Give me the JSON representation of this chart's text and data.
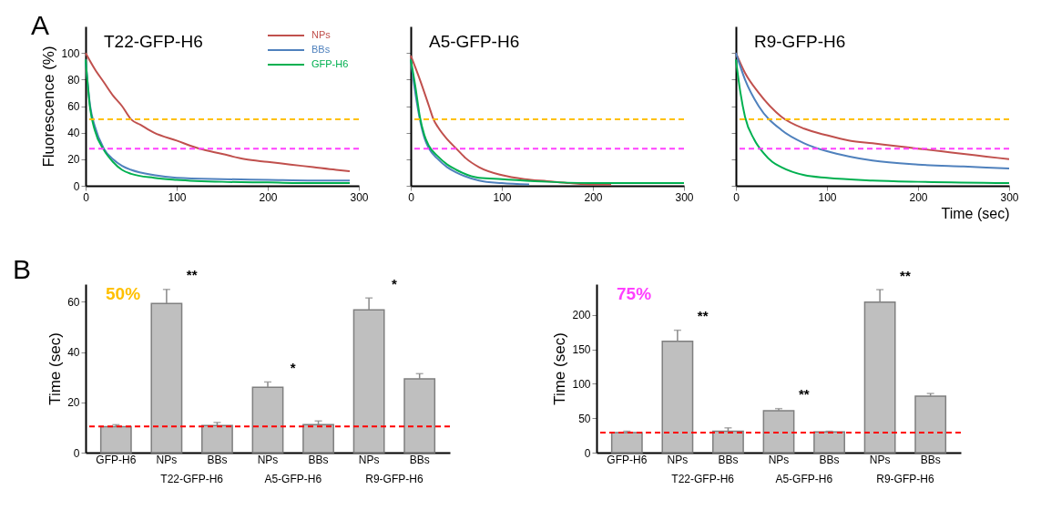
{
  "chart_data": [
    {
      "type": "line",
      "title": "T22-GFP-H6",
      "ylabel": "Fluorescence (%)",
      "annotations": [
        "A"
      ],
      "xlim": [
        0,
        300
      ],
      "xticks": [
        0,
        100,
        200,
        300
      ],
      "ylim": [
        0,
        120
      ],
      "yticks": [
        0,
        20,
        40,
        60,
        80,
        100
      ],
      "legend": "top right",
      "grid": false,
      "series": [
        {
          "name": "NPs",
          "color": "#c0504d",
          "x": [
            0,
            10,
            20,
            30,
            40,
            50,
            60,
            75,
            100,
            125,
            150,
            175,
            200,
            225,
            250,
            275,
            290
          ],
          "values": [
            100,
            88,
            78,
            68,
            60,
            50,
            46,
            40,
            34,
            28,
            24,
            20,
            18,
            16,
            14,
            12,
            11
          ]
        },
        {
          "name": "BBs",
          "color": "#4f81bd",
          "x": [
            0,
            5,
            10,
            20,
            30,
            40,
            50,
            75,
            100,
            150,
            200,
            250,
            290
          ],
          "values": [
            95,
            60,
            45,
            28,
            20,
            15,
            12,
            8,
            6,
            5,
            4.5,
            4,
            4
          ]
        },
        {
          "name": "GFP-H6",
          "color": "#00b050",
          "x": [
            0,
            5,
            10,
            20,
            30,
            40,
            50,
            75,
            100,
            150,
            200,
            250,
            290
          ],
          "values": [
            95,
            58,
            42,
            27,
            18,
            12,
            9,
            6,
            4.5,
            3,
            2.5,
            2,
            2
          ]
        }
      ],
      "ref_lines": [
        {
          "axis": "y",
          "value": 50,
          "color": "#ffc000",
          "line_style": "dashed"
        },
        {
          "axis": "y",
          "value": 28,
          "color": "#ff40ff",
          "line_style": "dashed"
        }
      ]
    },
    {
      "type": "line",
      "title": "A5-GFP-H6",
      "xlim": [
        0,
        300
      ],
      "xticks": [
        0,
        100,
        200,
        300
      ],
      "ylim": [
        0,
        120
      ],
      "yticks": [
        0,
        20,
        40,
        60,
        80,
        100
      ],
      "tick_labels": "x",
      "grid": false,
      "series": [
        {
          "color": "#c0504d",
          "x": [
            0,
            10,
            20,
            25,
            30,
            40,
            50,
            60,
            75,
            100,
            125,
            150,
            175,
            200,
            220
          ],
          "values": [
            98,
            80,
            60,
            50,
            44,
            35,
            28,
            21,
            14,
            8,
            5,
            3.5,
            2,
            1,
            1
          ]
        },
        {
          "color": "#4f81bd",
          "x": [
            0,
            5,
            10,
            15,
            20,
            30,
            40,
            50,
            75,
            100,
            130
          ],
          "values": [
            95,
            70,
            50,
            36,
            28,
            20,
            14,
            10,
            4,
            2,
            1
          ]
        },
        {
          "color": "#00b050",
          "x": [
            0,
            5,
            10,
            15,
            20,
            30,
            40,
            50,
            75,
            100,
            150,
            200,
            300
          ],
          "values": [
            95,
            75,
            52,
            38,
            30,
            22,
            16,
            12,
            6,
            5,
            3,
            2,
            2
          ]
        }
      ],
      "ref_lines": [
        {
          "axis": "y",
          "value": 50,
          "color": "#ffc000",
          "line_style": "dashed"
        },
        {
          "axis": "y",
          "value": 28,
          "color": "#ff40ff",
          "line_style": "dashed"
        }
      ]
    },
    {
      "type": "line",
      "title": "R9-GFP-H6",
      "xlabel": "Time (sec)",
      "xlim": [
        0,
        300
      ],
      "xticks": [
        0,
        100,
        200,
        300
      ],
      "ylim": [
        0,
        120
      ],
      "yticks": [
        0,
        20,
        40,
        60,
        80,
        100
      ],
      "tick_labels": "x",
      "grid": false,
      "series": [
        {
          "color": "#c0504d",
          "x": [
            0,
            10,
            25,
            50,
            75,
            100,
            125,
            150,
            175,
            200,
            225,
            250,
            275,
            300
          ],
          "values": [
            100,
            85,
            70,
            52,
            43,
            38,
            34,
            32,
            30,
            28,
            26,
            24,
            22,
            20
          ]
        },
        {
          "color": "#4f81bd",
          "x": [
            0,
            10,
            25,
            50,
            75,
            100,
            125,
            150,
            200,
            250,
            300
          ],
          "values": [
            100,
            80,
            60,
            42,
            32,
            26,
            22,
            19,
            16,
            14.5,
            13
          ]
        },
        {
          "color": "#00b050",
          "x": [
            0,
            5,
            10,
            20,
            30,
            40,
            50,
            75,
            100,
            150,
            200,
            300
          ],
          "values": [
            95,
            70,
            52,
            35,
            25,
            18,
            14,
            8,
            6,
            4,
            3,
            2
          ]
        }
      ],
      "ref_lines": [
        {
          "axis": "y",
          "value": 50,
          "color": "#ffc000",
          "line_style": "dashed"
        },
        {
          "axis": "y",
          "value": 28,
          "color": "#ff40ff",
          "line_style": "dashed"
        }
      ]
    },
    {
      "type": "bar",
      "title": "50%",
      "ylabel": "Time (sec)",
      "annotations": [
        "B",
        "T22-GFP-H6",
        "A5-GFP-H6",
        "R9-GFP-H6",
        "**",
        "*",
        "*"
      ],
      "categories": [
        "GFP-H6",
        "NPs",
        "BBs",
        "NPs",
        "BBs",
        "NPs",
        "BBs"
      ],
      "values": [
        10.3,
        59.3,
        10.8,
        26.0,
        11.1,
        56.8,
        29.3
      ],
      "errors": [
        0.8,
        5.6,
        1.2,
        2.1,
        1.5,
        4.7,
        2.1
      ],
      "color": "#bfbfbf",
      "ylim": [
        0,
        67
      ],
      "yticks": [
        0,
        20,
        40,
        60
      ],
      "grid": false,
      "ref_lines": [
        {
          "axis": "y",
          "value": 10.4,
          "color": "#ff0000",
          "line_style": "dashed"
        }
      ]
    },
    {
      "type": "bar",
      "title": "75%",
      "ylabel": "Time (sec)",
      "annotations": [
        "T22-GFP-H6",
        "A5-GFP-H6",
        "R9-GFP-H6",
        "**",
        "**",
        "**"
      ],
      "categories": [
        "GFP-H6",
        "NPs",
        "BBs",
        "NPs",
        "BBs",
        "NPs",
        "BBs"
      ],
      "values": [
        29,
        162,
        31,
        61,
        30,
        219,
        82
      ],
      "errors": [
        2,
        16,
        5,
        3,
        1,
        18,
        4
      ],
      "color": "#bfbfbf",
      "ylim": [
        0,
        245
      ],
      "yticks": [
        0,
        50,
        100,
        150,
        200
      ],
      "grid": false,
      "ref_lines": [
        {
          "axis": "y",
          "value": 29,
          "color": "#ff0000",
          "line_style": "dashed"
        }
      ]
    }
  ]
}
